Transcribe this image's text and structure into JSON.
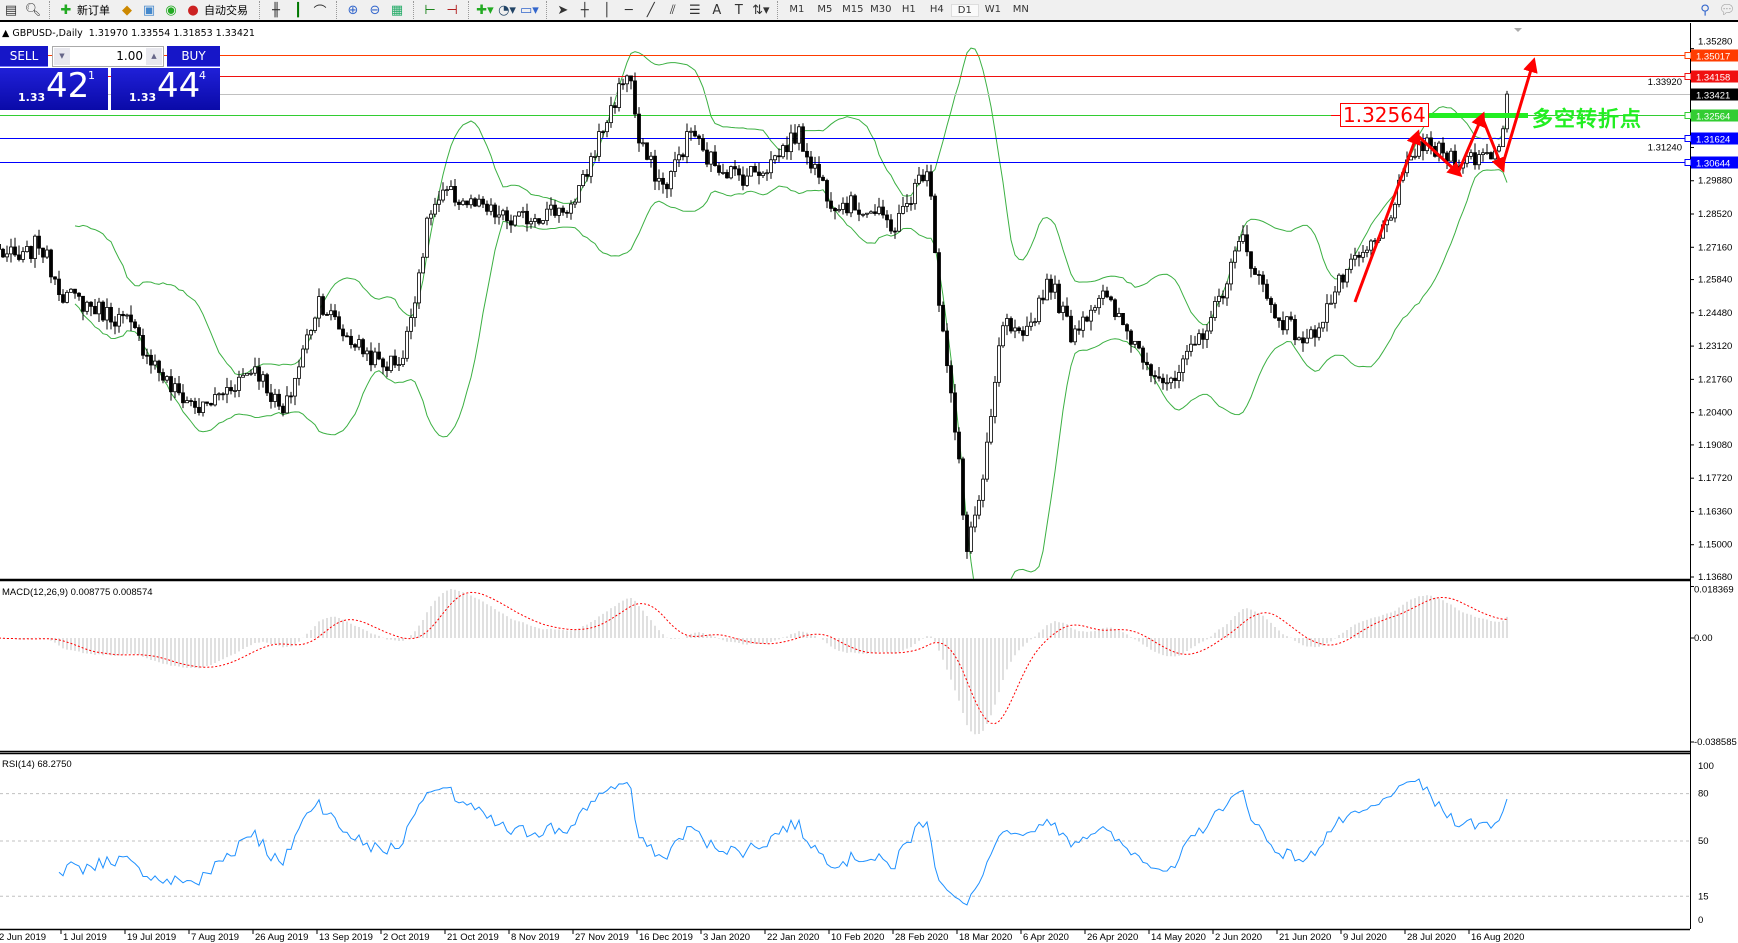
{
  "toolbar": {
    "new_order_label": "新订单",
    "auto_trading_label": "自动交易",
    "timeframes": [
      "M1",
      "M5",
      "M15",
      "M30",
      "H1",
      "H4",
      "D1",
      "W1",
      "MN"
    ],
    "active_timeframe": "D1"
  },
  "chart": {
    "title": "GBPUSD-,Daily  1.31970 1.33554 1.31853 1.33421"
  },
  "one_click": {
    "sell_label": "SELL",
    "buy_label": "BUY",
    "lot": "1.00",
    "sell_price": {
      "prefix": "1.33",
      "big": "42",
      "sup": "1"
    },
    "buy_price": {
      "prefix": "1.33",
      "big": "44",
      "sup": "4"
    }
  },
  "annotations": {
    "level_box": "1.32564",
    "level_text": "多空转折点"
  },
  "price_lines": [
    {
      "label": "1.35017",
      "value": 1.35017,
      "color": "#ff3c00"
    },
    {
      "label": "1.34158",
      "value": 1.34158,
      "color": "#f01010"
    },
    {
      "label": "1.33421",
      "value": 1.33421,
      "color": "#000000",
      "line": "#c0c0c0"
    },
    {
      "label": "1.32564",
      "value": 1.32564,
      "color": "#32cd32"
    },
    {
      "label": "1.31624",
      "value": 1.31624,
      "color": "#0000ff"
    },
    {
      "label": "1.30644",
      "value": 1.30644,
      "color": "#0000ff"
    }
  ],
  "macd": {
    "label": "MACD(12,26,9) 0.008775 0.008574",
    "top": "0.018369",
    "zero": "0.00",
    "bottom": "-0.038585",
    "range": [
      -0.038585,
      0.018369
    ]
  },
  "rsi": {
    "label": "RSI(14) 68.2750",
    "levels": [
      "100",
      "80",
      "50",
      "15",
      "0"
    ]
  },
  "chart_data": {
    "type": "candlestick",
    "symbol": "GBPUSD-",
    "timeframe": "Daily",
    "last_ohlc": {
      "open": 1.3197,
      "high": 1.33554,
      "low": 1.31853,
      "close": 1.33421
    },
    "ylim": [
      1.1368,
      1.3528
    ],
    "price_ticks": [
      "1.35280",
      "1.33920",
      "1.31240",
      "1.29880",
      "1.28520",
      "1.27160",
      "1.25840",
      "1.24480",
      "1.23120",
      "1.21760",
      "1.20400",
      "1.19080",
      "1.17720",
      "1.16360",
      "1.15000",
      "1.13680"
    ],
    "date_labels": [
      "2 Jun 2019",
      "1 Jul 2019",
      "19 Jul 2019",
      "7 Aug 2019",
      "26 Aug 2019",
      "13 Sep 2019",
      "2 Oct 2019",
      "21 Oct 2019",
      "8 Nov 2019",
      "27 Nov 2019",
      "16 Dec 2019",
      "3 Jan 2020",
      "22 Jan 2020",
      "10 Feb 2020",
      "28 Feb 2020",
      "18 Mar 2020",
      "6 Apr 2020",
      "26 Apr 2020",
      "14 May 2020",
      "2 Jun 2020",
      "21 Jun 2020",
      "9 Jul 2020",
      "28 Jul 2020",
      "16 Aug 2020"
    ],
    "close_path": [
      [
        "2 Jun 2019",
        1.27
      ],
      [
        "12 Jun 2019",
        1.266
      ],
      [
        "20 Jun 2019",
        1.2738
      ],
      [
        "1 Jul 2019",
        1.2525
      ],
      [
        "19 Jul 2019",
        1.241
      ],
      [
        "1 Aug 2019",
        1.2141
      ],
      [
        "10 Aug 2019",
        1.205
      ],
      [
        "26 Aug 2019",
        1.2231
      ],
      [
        "3 Sep 2019",
        1.2026
      ],
      [
        "13 Sep 2019",
        1.2505
      ],
      [
        "20 Sep 2019",
        1.2366
      ],
      [
        "2 Oct 2019",
        1.2231
      ],
      [
        "8 Oct 2019",
        1.2266
      ],
      [
        "16 Oct 2019",
        1.2866
      ],
      [
        "21 Oct 2019",
        1.2934
      ],
      [
        "8 Nov 2019",
        1.282
      ],
      [
        "27 Nov 2019",
        1.2889
      ],
      [
        "4 Dec 2019",
        1.3159
      ],
      [
        "13 Dec 2019",
        1.3453
      ],
      [
        "16 Dec 2019",
        1.3138
      ],
      [
        "23 Dec 2019",
        1.2955
      ],
      [
        "31 Dec 2019",
        1.3204
      ],
      [
        "3 Jan 2020",
        1.3093
      ],
      [
        "14 Jan 2020",
        1.3003
      ],
      [
        "22 Jan 2020",
        1.3048
      ],
      [
        "31 Jan 2020",
        1.3183
      ],
      [
        "10 Feb 2020",
        1.291
      ],
      [
        "21 Feb 2020",
        1.2866
      ],
      [
        "28 Feb 2020",
        1.2799
      ],
      [
        "9 Mar 2020",
        1.3069
      ],
      [
        "12 Mar 2020",
        1.2505
      ],
      [
        "18 Mar 2020",
        1.1822
      ],
      [
        "20 Mar 2020",
        1.1483
      ],
      [
        "25 Mar 2020",
        1.1732
      ],
      [
        "31 Mar 2020",
        1.241
      ],
      [
        "6 Apr 2020",
        1.2321
      ],
      [
        "14 Apr 2020",
        1.2594
      ],
      [
        "21 Apr 2020",
        1.2366
      ],
      [
        "30 Apr 2020",
        1.2525
      ],
      [
        "14 May 2020",
        1.2231
      ],
      [
        "20 May 2020",
        1.2141
      ],
      [
        "2 Jun 2020",
        1.246
      ],
      [
        "10 Jun 2020",
        1.2754
      ],
      [
        "19 Jun 2020",
        1.246
      ],
      [
        "29 Jun 2020",
        1.2321
      ],
      [
        "9 Jul 2020",
        1.2594
      ],
      [
        "20 Jul 2020",
        1.2754
      ],
      [
        "31 Jul 2020",
        1.3138
      ],
      [
        "14 Aug 2020",
        1.3069
      ],
      [
        "24 Aug 2020",
        1.3114
      ],
      [
        "27 Aug 2020",
        1.33421
      ]
    ],
    "indicators": [
      "Bollinger Bands",
      "MACD(12,26,9)",
      "RSI(14)"
    ],
    "colors": {
      "bands": "#3cb043",
      "macd_hist": "#c0c0c0",
      "macd_signal": "#ff0000",
      "rsi": "#1e90ff",
      "arrows": "#ff0000",
      "pivot_line": "#22ee22"
    }
  }
}
